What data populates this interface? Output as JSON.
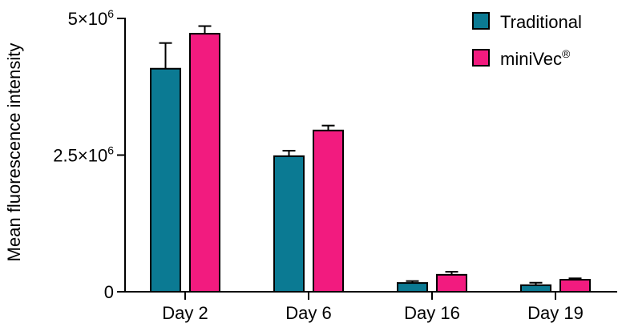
{
  "chart_data": {
    "type": "bar",
    "title": "",
    "xlabel": "",
    "ylabel": "Mean fluorescence intensity",
    "ylim": [
      0,
      5000000
    ],
    "categories": [
      "Day 2",
      "Day 6",
      "Day 16",
      "Day 19"
    ],
    "yticks": [
      {
        "value": 5000000,
        "base": "5×10",
        "exp": "6"
      },
      {
        "value": 2500000,
        "base": "2.5×10",
        "exp": "6"
      },
      {
        "value": 0,
        "base": "0",
        "exp": ""
      }
    ],
    "series": [
      {
        "name": "Traditional",
        "color": "#0b7a93",
        "values": [
          4080000,
          2480000,
          160000,
          120000
        ],
        "errors": [
          470000,
          100000,
          35000,
          45000
        ]
      },
      {
        "name": "miniVec",
        "name_sup": "®",
        "color": "#f21b7f",
        "values": [
          4720000,
          2950000,
          310000,
          220000
        ],
        "errors": [
          140000,
          90000,
          55000,
          25000
        ]
      }
    ],
    "legend": "top-right",
    "grid": false
  }
}
